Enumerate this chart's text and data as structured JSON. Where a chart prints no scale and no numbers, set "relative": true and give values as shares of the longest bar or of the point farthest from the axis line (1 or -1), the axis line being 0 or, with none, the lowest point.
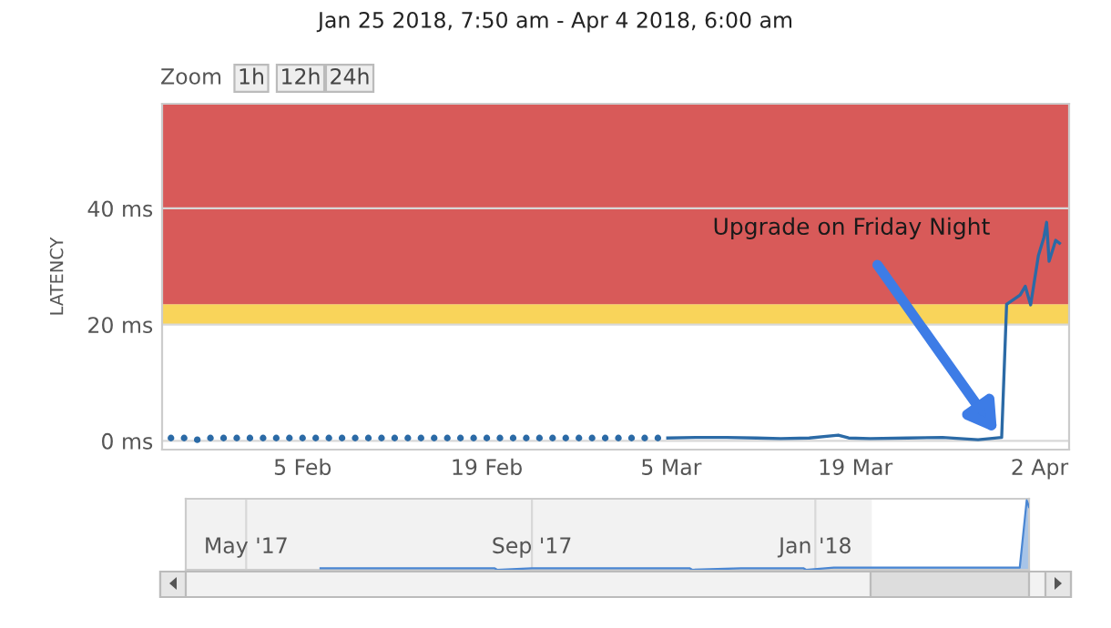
{
  "chart_data": [
    {
      "type": "line",
      "title": "Jan 25 2018, 7:50 am - Apr 4 2018, 6:00 am",
      "ylabel": "LATENCY",
      "annotations": [
        "Zoom",
        "1h",
        "12h",
        "24h",
        {
          "text": "Upgrade on Friday Night",
          "x": "2018-03-30T00:00",
          "y": 0.6
        }
      ],
      "series": [
        {
          "type": "scatter",
          "color": "#2b6aa6",
          "marker": "circle",
          "x": [
            "2018-01-26",
            "2018-01-27",
            "2018-01-28",
            "2018-01-29",
            "2018-01-30",
            "2018-01-31",
            "2018-02-01",
            "2018-02-02",
            "2018-02-03",
            "2018-02-04",
            "2018-02-05",
            "2018-02-06",
            "2018-02-07",
            "2018-02-08",
            "2018-02-09",
            "2018-02-10",
            "2018-02-11",
            "2018-02-12",
            "2018-02-13",
            "2018-02-14",
            "2018-02-15",
            "2018-02-16",
            "2018-02-17",
            "2018-02-18",
            "2018-02-19",
            "2018-02-20",
            "2018-02-21",
            "2018-02-22",
            "2018-02-23",
            "2018-02-24",
            "2018-02-25",
            "2018-02-26",
            "2018-02-27",
            "2018-02-28",
            "2018-03-01",
            "2018-03-02",
            "2018-03-03",
            "2018-03-04"
          ],
          "values": [
            0.5,
            0.5,
            0.2,
            0.5,
            0.5,
            0.5,
            0.5,
            0.5,
            0.5,
            0.5,
            0.5,
            0.5,
            0.5,
            0.5,
            0.5,
            0.5,
            0.5,
            0.5,
            0.5,
            0.5,
            0.5,
            0.5,
            0.5,
            0.5,
            0.5,
            0.5,
            0.5,
            0.5,
            0.5,
            0.5,
            0.5,
            0.5,
            0.5,
            0.5,
            0.5,
            0.5,
            0.5,
            0.5
          ]
        },
        {
          "type": "line",
          "color": "#2b6aa6",
          "line_style": "solid",
          "x": [
            "2018-03-04T18:00",
            "2018-03-07T00:00",
            "2018-03-09T05:00",
            "2018-03-11T12:00",
            "2018-03-13T08:00",
            "2018-03-15T12:00",
            "2018-03-17T17:00",
            "2018-03-18T12:00",
            "2018-03-20T03:00",
            "2018-03-23T00:00",
            "2018-03-25T15:00",
            "2018-03-28T08:00",
            "2018-03-30T03:00",
            "2018-03-30T12:00",
            "2018-03-31T12:40",
            "2018-03-31T22:00",
            "2018-04-01T07:50",
            "2018-04-01T22:00",
            "2018-04-02T08:00",
            "2018-04-02T13:00",
            "2018-04-02T17:30",
            "2018-04-03T00:30",
            "2018-04-03T05:30",
            "2018-04-03T12:30"
          ],
          "values": [
            0.5,
            0.6,
            0.6,
            0.5,
            0.4,
            0.5,
            1.0,
            0.5,
            0.4,
            0.5,
            0.6,
            0.2,
            0.6,
            23.5,
            25.1,
            26.6,
            23.4,
            31.9,
            35.0,
            37.6,
            30.9,
            33.0,
            34.5,
            34.0
          ]
        }
      ],
      "xlim": [
        "2018-01-25T07:50",
        "2018-04-04T06:00"
      ],
      "xticks": [
        {
          "value": "2018-02-05",
          "label": "5 Feb"
        },
        {
          "value": "2018-02-19",
          "label": "19 Feb"
        },
        {
          "value": "2018-03-05",
          "label": "5 Mar"
        },
        {
          "value": "2018-03-19",
          "label": "19 Mar"
        },
        {
          "value": "2018-04-02",
          "label": "2 Apr"
        }
      ],
      "ylim": [
        -1.5,
        58
      ],
      "yticks": [
        {
          "value": 0,
          "label": "0 ms"
        },
        {
          "value": 20,
          "label": "20 ms"
        },
        {
          "value": 40,
          "label": "40 ms"
        }
      ],
      "bands": [
        {
          "axis": "y",
          "from": 20,
          "to": 23.5,
          "color": "#f9d45a"
        },
        {
          "axis": "y",
          "from": 23.5,
          "to": 58,
          "color": "#d85a59"
        }
      ],
      "grid": "y"
    },
    {
      "type": "area",
      "relative": true,
      "tick_labels": "x",
      "grid": "x",
      "series": [
        {
          "color": "#4a86d2",
          "x": [
            "2017-06-02",
            "2017-08-16",
            "2017-08-17",
            "2017-09-01",
            "2017-11-08",
            "2017-11-09",
            "2017-11-30",
            "2017-12-27",
            "2017-12-28",
            "2018-01-09",
            "2018-03-30",
            "2018-04-02",
            "2018-04-03"
          ],
          "values": [
            0.02,
            0.02,
            0,
            0.02,
            0.02,
            0,
            0.02,
            0.02,
            0,
            0.03,
            0.03,
            1,
            0.9
          ]
        }
      ],
      "xlim": [
        "2017-04-05",
        "2018-04-03"
      ],
      "xticks": [
        {
          "value": "2017-05-01",
          "label": "May '17"
        },
        {
          "value": "2017-09-01",
          "label": "Sep '17"
        },
        {
          "value": "2018-01-01",
          "label": "Jan '18"
        }
      ],
      "bands": [
        {
          "axis": "x",
          "from": "2017-04-05",
          "to": "2018-01-25T07:50",
          "color": "#f2f2f2"
        }
      ]
    }
  ]
}
